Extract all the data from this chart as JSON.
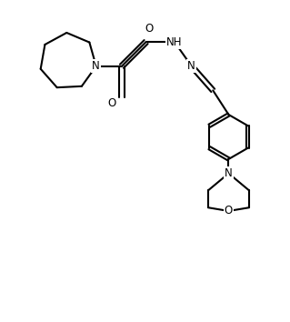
{
  "bg_color": "#ffffff",
  "line_color": "#000000",
  "line_width": 1.5,
  "fig_width": 3.19,
  "fig_height": 3.54,
  "dpi": 100,
  "xlim": [
    0,
    10
  ],
  "ylim": [
    0,
    11
  ]
}
